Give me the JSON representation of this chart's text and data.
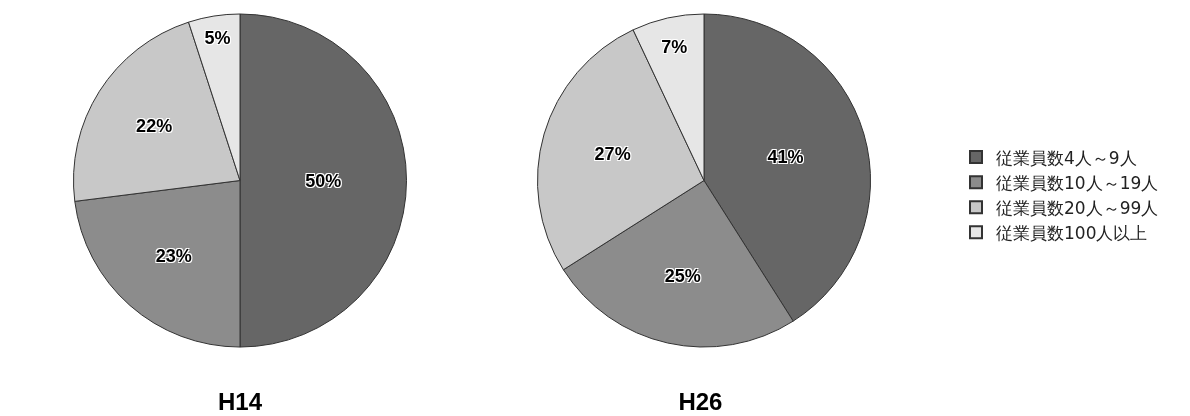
{
  "chart_data": [
    {
      "type": "pie",
      "title": "H14",
      "categories": [
        null,
        null,
        null,
        null
      ],
      "values": [
        50,
        23,
        22,
        5
      ],
      "colors": [
        "#666666",
        "#8c8c8c",
        "#c8c8c8",
        "#e6e6e6"
      ],
      "value_labels": [
        "50%",
        "23%",
        "22%",
        "5%"
      ],
      "legend": false
    },
    {
      "type": "pie",
      "title": "H26",
      "categories": [
        "従業員数4人～9人",
        "従業員数10人～19人",
        "従業員数20人～99人",
        "従業員数100人以上"
      ],
      "values": [
        41,
        25,
        27,
        7
      ],
      "colors": [
        "#666666",
        "#8c8c8c",
        "#c8c8c8",
        "#e6e6e6"
      ],
      "value_labels": [
        "41%",
        "25%",
        "27%",
        "7%"
      ],
      "legend": "right"
    }
  ]
}
